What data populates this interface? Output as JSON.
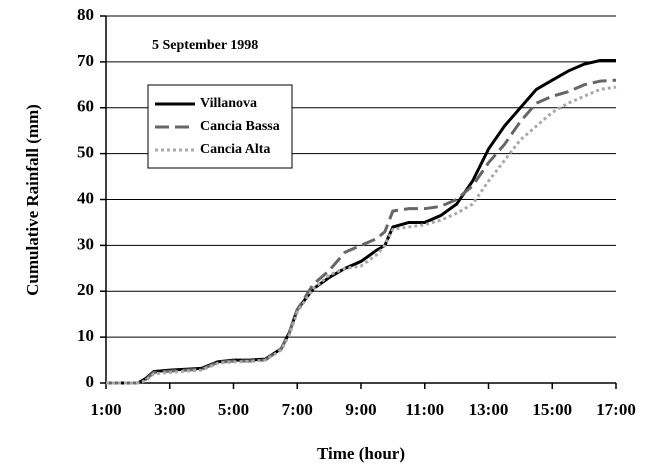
{
  "chart_data": {
    "type": "line",
    "annotation": "5 September 1998",
    "xlabel": "Time  (hour)",
    "ylabel": "Cumulative Rainfall  (mm)",
    "x": [
      1,
      2,
      2.25,
      2.5,
      3,
      3.5,
      4,
      4.5,
      5,
      5.5,
      6,
      6.5,
      6.75,
      7,
      7.5,
      8,
      8.5,
      9,
      9.5,
      9.75,
      10,
      10.5,
      11,
      11.5,
      12,
      12.5,
      13,
      13.5,
      14,
      14.5,
      15,
      15.5,
      16,
      16.5,
      17
    ],
    "series": [
      {
        "name": "Villanova",
        "color": "#000000",
        "dash": "solid",
        "values": [
          0,
          0,
          1,
          2.5,
          2.8,
          3,
          3.2,
          4.6,
          5,
          5,
          5.2,
          7.5,
          11,
          16,
          20.5,
          23,
          25,
          26.5,
          29,
          30,
          34,
          35,
          35,
          36.5,
          39,
          44,
          51,
          56,
          60,
          64,
          66,
          68,
          69.5,
          70.3,
          70.3
        ]
      },
      {
        "name": "Cancia Bassa",
        "color": "#666666",
        "dash": "dashed",
        "values": [
          0,
          0,
          0.8,
          2.3,
          2.6,
          2.8,
          3,
          4.5,
          4.8,
          4.8,
          5,
          7.5,
          11,
          16,
          21.5,
          24.5,
          28.5,
          30,
          31.5,
          33,
          37.5,
          38,
          38,
          38.5,
          40,
          43,
          48,
          52,
          57,
          61,
          62.5,
          63.5,
          65,
          65.8,
          66
        ]
      },
      {
        "name": "Cancia Alta",
        "color": "#aaaaaa",
        "dash": "dotted",
        "values": [
          0,
          0,
          0.5,
          2,
          2.3,
          2.6,
          2.8,
          4.3,
          4.6,
          4.7,
          5,
          7.2,
          10.5,
          15.5,
          20.5,
          23.5,
          25,
          25.5,
          28,
          30,
          33.5,
          34,
          34.5,
          35.5,
          37,
          39,
          44,
          48.5,
          53,
          56,
          59,
          61,
          62.5,
          64,
          64.5
        ]
      }
    ],
    "xlim": [
      1,
      17
    ],
    "xticks": [
      {
        "value": 1,
        "label": "1:00"
      },
      {
        "value": 3,
        "label": "3:00"
      },
      {
        "value": 5,
        "label": "5:00"
      },
      {
        "value": 7,
        "label": "7:00"
      },
      {
        "value": 9,
        "label": "9:00"
      },
      {
        "value": 11,
        "label": "11:00"
      },
      {
        "value": 13,
        "label": "13:00"
      },
      {
        "value": 15,
        "label": "15:00"
      },
      {
        "value": 17,
        "label": "17:00"
      }
    ],
    "ylim": [
      0,
      80
    ],
    "yticks": [
      0,
      10,
      20,
      30,
      40,
      50,
      60,
      70,
      80
    ],
    "grid": true,
    "legend": "upper left"
  }
}
